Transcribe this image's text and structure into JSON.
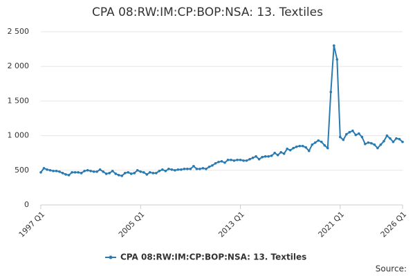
{
  "chart_data": {
    "type": "line",
    "title": "CPA 08:RW:IM:CP:BOP:NSA: 13. Textiles",
    "source": "Source:",
    "categories": [
      "1997 Q1",
      null,
      null,
      null,
      null,
      null,
      null,
      null,
      null,
      null,
      null,
      null,
      null,
      null,
      null,
      null,
      null,
      null,
      null,
      null,
      null,
      null,
      null,
      null,
      null,
      null,
      null,
      null,
      null,
      null,
      null,
      null,
      "2005 Q1",
      null,
      null,
      null,
      null,
      null,
      null,
      null,
      null,
      null,
      null,
      null,
      null,
      null,
      null,
      null,
      null,
      null,
      null,
      null,
      null,
      null,
      null,
      null,
      null,
      null,
      null,
      null,
      null,
      null,
      null,
      null,
      "2013 Q1",
      null,
      null,
      null,
      null,
      null,
      null,
      null,
      null,
      null,
      null,
      null,
      null,
      null,
      null,
      null,
      null,
      null,
      null,
      null,
      null,
      null,
      null,
      null,
      null,
      null,
      null,
      null,
      null,
      null,
      null,
      null,
      "2021 Q1",
      null,
      null,
      null,
      null,
      null,
      null,
      null,
      null,
      null,
      null,
      null,
      null,
      null,
      null,
      null,
      null,
      null,
      null,
      null,
      "2026 Q1"
    ],
    "series": [
      {
        "name": "CPA 08:RW:IM:CP:BOP:NSA: 13. Textiles",
        "color": "#2a7ab0",
        "values": [
          470,
          530,
          510,
          500,
          490,
          490,
          480,
          460,
          440,
          430,
          470,
          470,
          470,
          460,
          490,
          500,
          490,
          480,
          480,
          510,
          480,
          450,
          460,
          490,
          450,
          430,
          420,
          460,
          470,
          450,
          460,
          500,
          480,
          470,
          440,
          470,
          460,
          460,
          490,
          510,
          490,
          520,
          510,
          500,
          510,
          510,
          520,
          520,
          520,
          560,
          520,
          520,
          530,
          520,
          550,
          570,
          600,
          620,
          630,
          610,
          650,
          650,
          640,
          650,
          650,
          640,
          640,
          660,
          680,
          700,
          660,
          690,
          700,
          700,
          710,
          750,
          720,
          760,
          740,
          810,
          790,
          820,
          840,
          850,
          850,
          830,
          780,
          870,
          900,
          930,
          910,
          860,
          820,
          1630,
          2300,
          2100,
          980,
          940,
          1020,
          1050,
          1070,
          1010,
          1030,
          980,
          880,
          900,
          890,
          870,
          820,
          870,
          920,
          1000,
          960,
          910,
          960,
          950,
          910
        ]
      }
    ],
    "ylim": [
      0,
      2500
    ],
    "yticks": [
      0,
      500,
      {
        "value": 1000,
        "label": "1 000"
      },
      {
        "value": 1500,
        "label": "1 500"
      },
      {
        "value": 2000,
        "label": "2 000"
      },
      {
        "value": 2500,
        "label": "2 500"
      }
    ],
    "grid": true,
    "legend": "bottom"
  }
}
